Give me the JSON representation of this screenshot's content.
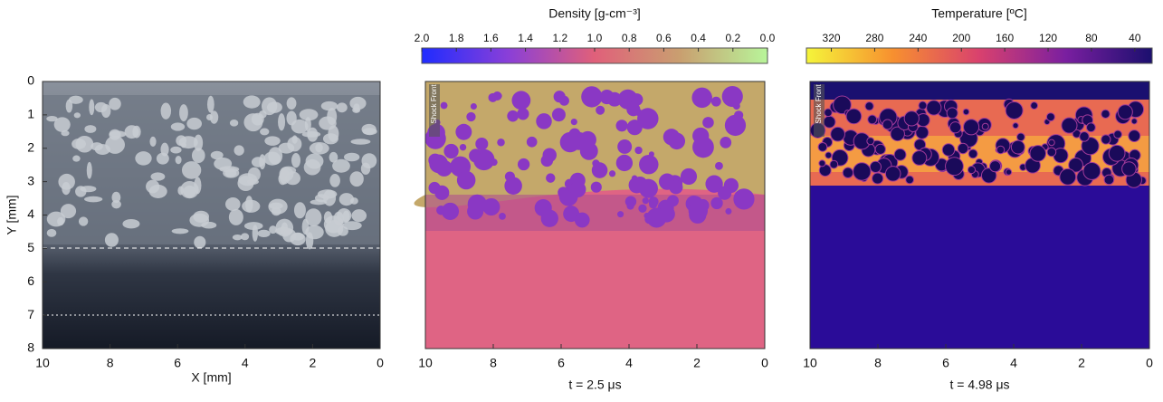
{
  "chart_data": [
    {
      "type": "image",
      "xlabel": "X [mm]",
      "ylabel": "Y [mm]",
      "xlim": [
        10,
        0
      ],
      "xticks": [
        10,
        8,
        6,
        4,
        2,
        0
      ],
      "ylim": [
        0,
        8
      ],
      "yticks": [
        0,
        1,
        2,
        3,
        4,
        5,
        6,
        7,
        8
      ]
    },
    {
      "type": "image",
      "caption": "t = 2.5 μs",
      "annotation": "Shock Front",
      "xlim": [
        10,
        0
      ],
      "xticks": [
        10,
        8,
        6,
        4,
        2,
        0
      ],
      "colorbar_title": "Density [g-cm⁻³]",
      "clim": [
        2.0,
        0.0
      ],
      "cticks": [
        {
          "value": 2.0,
          "label": "2.0"
        },
        {
          "value": 1.8,
          "label": "1.8"
        },
        {
          "value": 1.6,
          "label": "1.6"
        },
        {
          "value": 1.4,
          "label": "1.4"
        },
        {
          "value": 1.2,
          "label": "1.2"
        },
        {
          "value": 1.0,
          "label": "1.0"
        },
        {
          "value": 0.8,
          "label": "0.8"
        },
        {
          "value": 0.6,
          "label": "0.6"
        },
        {
          "value": 0.4,
          "label": "0.4"
        },
        {
          "value": 0.2,
          "label": "0.2"
        },
        {
          "value": 0.0,
          "label": "0.0"
        }
      ],
      "colors": [
        "#1f2cff",
        "#8a3fd8",
        "#e0607a",
        "#c9a070",
        "#b8f59a"
      ]
    },
    {
      "type": "image",
      "caption": "t = 4.98 μs",
      "annotation": "Shock Front",
      "xlim": [
        10,
        0
      ],
      "xticks": [
        10,
        8,
        6,
        4,
        2,
        0
      ],
      "colorbar_title": "Temperature [ºC]",
      "clim": [
        343,
        24
      ],
      "cticks": [
        320,
        280,
        240,
        200,
        160,
        120,
        80,
        40
      ],
      "colors": [
        "#f5f53a",
        "#f7902f",
        "#d9416e",
        "#7a1fa0",
        "#1b0f6e"
      ]
    }
  ]
}
